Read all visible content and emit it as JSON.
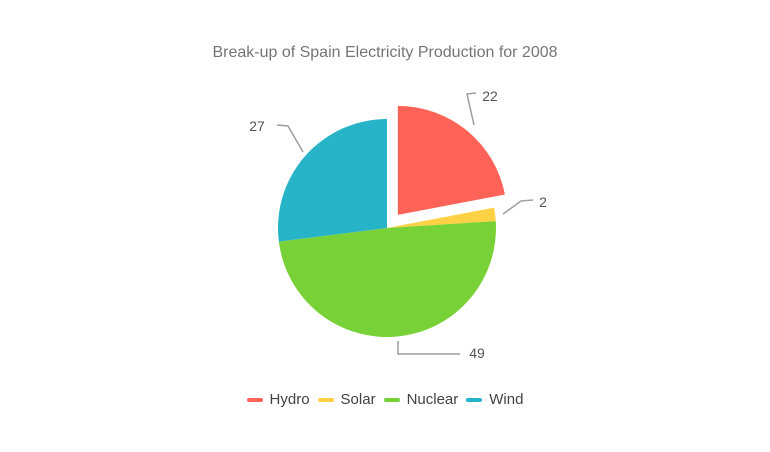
{
  "chart_data": {
    "type": "pie",
    "title": "Break-up of Spain Electricity Production for 2008",
    "categories": [
      "Hydro",
      "Solar",
      "Nuclear",
      "Wind"
    ],
    "values": [
      22,
      2,
      49,
      27
    ],
    "slices": [
      {
        "label": "Hydro",
        "value": 22,
        "color": "#FF6358",
        "exploded": true
      },
      {
        "label": "Solar",
        "value": 2,
        "color": "#FFD246",
        "exploded": false
      },
      {
        "label": "Nuclear",
        "value": 49,
        "color": "#78D237",
        "exploded": false
      },
      {
        "label": "Wind",
        "value": 27,
        "color": "#28B4C8",
        "exploded": false
      }
    ],
    "legend_position": "bottom",
    "start_angle": "12-oclock-clockwise",
    "grid": "off",
    "colors": {
      "background": "#ffffff",
      "title_text": "#757575",
      "value_label_text": "#555555",
      "connector_line": "#9e9e9e",
      "legend_text": "#424242"
    }
  }
}
